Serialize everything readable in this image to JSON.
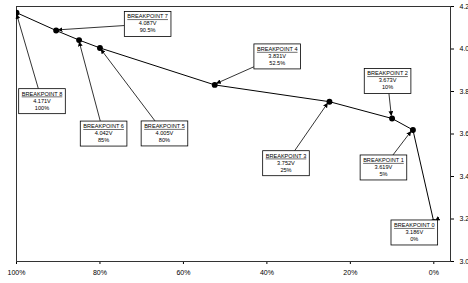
{
  "chart_data": {
    "type": "line",
    "x": [
      100,
      90.5,
      85,
      80,
      52.5,
      25,
      10,
      5,
      0
    ],
    "values": [
      4.171,
      4.087,
      4.042,
      4.005,
      3.831,
      3.752,
      3.673,
      3.619,
      3.186
    ],
    "color": "#000000",
    "marker": "circle",
    "grid": false,
    "xlim": [
      100,
      -4
    ],
    "xticks": [
      {
        "value": 100,
        "label": "100%"
      },
      {
        "value": 80,
        "label": "80%"
      },
      {
        "value": 60,
        "label": "60%"
      },
      {
        "value": 40,
        "label": "40%"
      },
      {
        "value": 20,
        "label": "20%"
      },
      {
        "value": 0,
        "label": "0%"
      }
    ],
    "ylim": [
      3,
      4.2
    ],
    "yticks": [
      {
        "value": 3,
        "label": "3.0"
      },
      3.2,
      3.4,
      3.6,
      3.8,
      {
        "value": 4,
        "label": "4.0"
      },
      4.2
    ],
    "annotations": [
      {
        "label": "BREAKPOINT 8",
        "value_label": "4.171V",
        "x_label": "100%"
      },
      {
        "label": "BREAKPOINT 7",
        "value_label": "4.087V",
        "x_label": "90.5%"
      },
      {
        "label": "BREAKPOINT 6",
        "value_label": "4.042V",
        "x_label": "85%"
      },
      {
        "label": "BREAKPOINT 5",
        "value_label": "4.005V",
        "x_label": "80%"
      },
      {
        "label": "BREAKPOINT 4",
        "value_label": "3.831V",
        "x_label": "52.5%"
      },
      {
        "label": "BREAKPOINT 3",
        "value_label": "3.752V",
        "x_label": "25%"
      },
      {
        "label": "BREAKPOINT 2",
        "value_label": "3.673V",
        "x_label": "10%"
      },
      {
        "label": "BREAKPOINT 1",
        "value_label": "3.619V",
        "x_label": "5%"
      },
      {
        "label": "BREAKPOINT 0",
        "value_label": "3.186V",
        "x_label": "0%"
      }
    ]
  }
}
